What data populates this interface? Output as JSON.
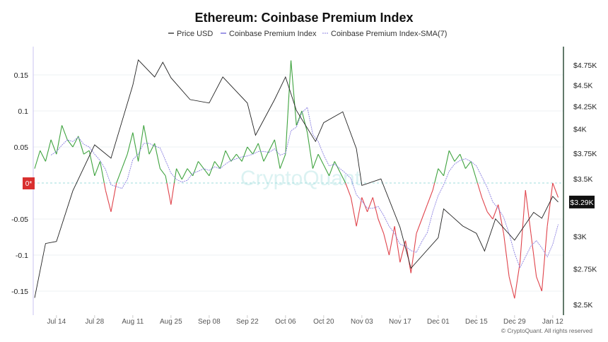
{
  "chart_data": {
    "type": "line",
    "title": "Ethereum: Coinbase Premium Index",
    "legend": [
      "Price USD",
      "Coinbase Premium Index",
      "Coinbase Premium Index-SMA(7)"
    ],
    "legend_placement": "top-center",
    "watermark": "CryptoQuant",
    "copyright": "© CryptoQuant. All rights reserved",
    "x_ticks": [
      "Jul 14",
      "Jul 28",
      "Aug 11",
      "Aug 25",
      "Sep 08",
      "Sep 22",
      "Oct 06",
      "Oct 20",
      "Nov 03",
      "Nov 17",
      "Dec 01",
      "Dec 15",
      "Dec 29",
      "Jan 12"
    ],
    "x_tick_days": [
      8,
      22,
      36,
      50,
      64,
      78,
      92,
      106,
      120,
      134,
      148,
      162,
      176,
      190
    ],
    "x_range_days": [
      0,
      192
    ],
    "x_start": "Jul 06",
    "left_axis": {
      "ticks": [
        0.15,
        0.1,
        0.05,
        0,
        -0.05,
        -0.1,
        -0.15
      ],
      "labels": [
        "0.15",
        "0.1",
        "0.05",
        "0",
        "-0.05",
        "-0.1",
        "-0.15"
      ],
      "range": [
        -0.18,
        0.2
      ]
    },
    "right_axis": {
      "scale": "log",
      "ticks": [
        4750,
        4500,
        4250,
        4000,
        3750,
        3500,
        3000,
        2750,
        2500
      ],
      "labels": [
        "$4.75K",
        "$4.5K",
        "$4.25K",
        "$4K",
        "$3.75K",
        "$3.5K",
        "$3K",
        "$2.75K",
        "$2.5K"
      ],
      "range": [
        2420,
        5150
      ]
    },
    "zero_marker": "0*",
    "current_price_label": "$3.29K",
    "price_usd": [
      [
        0,
        2545
      ],
      [
        4,
        2944
      ],
      [
        8,
        2960
      ],
      [
        14,
        3390
      ],
      [
        22,
        3835
      ],
      [
        28,
        3700
      ],
      [
        36,
        4500
      ],
      [
        38,
        4815
      ],
      [
        44,
        4600
      ],
      [
        47,
        4785
      ],
      [
        50,
        4590
      ],
      [
        57,
        4330
      ],
      [
        64,
        4290
      ],
      [
        69,
        4600
      ],
      [
        78,
        4290
      ],
      [
        81,
        3935
      ],
      [
        88,
        4330
      ],
      [
        92,
        4600
      ],
      [
        96,
        4205
      ],
      [
        103,
        3870
      ],
      [
        106,
        4070
      ],
      [
        113,
        4190
      ],
      [
        118,
        3795
      ],
      [
        120,
        3440
      ],
      [
        127,
        3500
      ],
      [
        134,
        3075
      ],
      [
        138,
        2755
      ],
      [
        148,
        2990
      ],
      [
        150,
        3230
      ],
      [
        157,
        3085
      ],
      [
        162,
        3025
      ],
      [
        165,
        2885
      ],
      [
        169,
        3145
      ],
      [
        176,
        2970
      ],
      [
        183,
        3200
      ],
      [
        186,
        3150
      ],
      [
        190,
        3340
      ],
      [
        192,
        3290
      ]
    ],
    "premium_step_days": 2,
    "premium_index": [
      0.02,
      0.045,
      0.03,
      0.06,
      0.04,
      0.08,
      0.06,
      0.05,
      0.065,
      0.04,
      0.045,
      0.01,
      0.03,
      -0.01,
      -0.04,
      0.0,
      0.02,
      0.04,
      0.07,
      0.03,
      0.08,
      0.04,
      0.055,
      0.02,
      0.01,
      -0.03,
      0.02,
      0.005,
      0.02,
      0.01,
      0.03,
      0.02,
      0.01,
      0.03,
      0.02,
      0.045,
      0.03,
      0.04,
      0.03,
      0.05,
      0.04,
      0.055,
      0.03,
      0.045,
      0.06,
      0.02,
      0.04,
      0.17,
      0.08,
      0.1,
      0.07,
      0.02,
      0.04,
      0.025,
      0.01,
      0.03,
      0.015,
      0.0,
      -0.02,
      -0.06,
      -0.02,
      -0.04,
      -0.02,
      -0.05,
      -0.07,
      -0.1,
      -0.06,
      -0.11,
      -0.08,
      -0.125,
      -0.07,
      -0.05,
      -0.03,
      -0.01,
      0.02,
      0.01,
      0.045,
      0.03,
      0.04,
      0.02,
      0.03,
      0.005,
      -0.02,
      -0.04,
      -0.05,
      -0.03,
      -0.07,
      -0.13,
      -0.16,
      -0.11,
      -0.01,
      -0.07,
      -0.13,
      -0.15,
      -0.06,
      0.0,
      -0.02
    ],
    "colors": {
      "price": "#222222",
      "positive": "#3fa33f",
      "negative": "#e0434b",
      "sma": "#8a7fe0",
      "left_axis": "#c9c3f0",
      "right_axis": "#2f4f3a",
      "zero_badge": "#d9302f"
    }
  }
}
